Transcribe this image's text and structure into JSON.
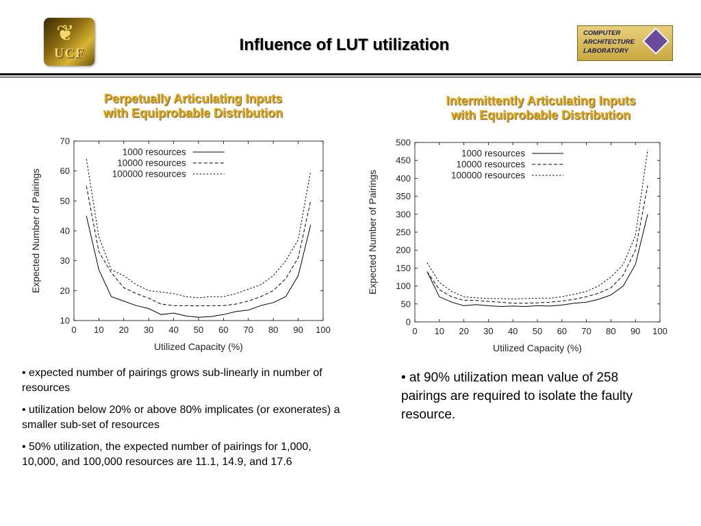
{
  "slide": {
    "title": "Influence of LUT utilization",
    "logo_left_text": "UCF",
    "logo_right_text": [
      "COMPUTER",
      "ARCHITECTURE",
      "LABORATORY"
    ]
  },
  "left": {
    "subtitle_lines": [
      "Perpetually Articulating Inputs",
      "with Equiprobable Distribution"
    ],
    "bullets": [
      "• expected number of pairings grows sub-linearly in number of resources",
      "• utilization below 20% or above 80% implicates (or exonerates) a smaller sub-set of resources",
      "• 50% utilization, the expected number of pairings for 1,000, 10,000, and 100,000 resources are 11.1, 14.9, and 17.6"
    ]
  },
  "right": {
    "subtitle_lines": [
      "Intermittently Articulating Inputs",
      "with Equiprobable Distribution"
    ],
    "bullets": [
      "• at 90% utilization mean value of 258 pairings are required to isolate the faulty resource."
    ]
  },
  "colors": {
    "subtitle": "#e8a800",
    "line": "#000000"
  },
  "chart_data": [
    {
      "type": "line",
      "xlabel": "Utilized Capacity (%)",
      "ylabel": "Expected Number of Pairings",
      "xlim": [
        0,
        100
      ],
      "ylim": [
        10,
        70
      ],
      "xticks": [
        0,
        10,
        20,
        30,
        40,
        50,
        60,
        70,
        80,
        90,
        100
      ],
      "yticks": [
        10,
        20,
        30,
        40,
        50,
        60,
        70
      ],
      "legend_position": "top-center",
      "x": [
        5,
        10,
        15,
        20,
        25,
        30,
        35,
        40,
        45,
        50,
        55,
        60,
        65,
        70,
        75,
        80,
        85,
        90,
        95
      ],
      "series": [
        {
          "name": "1000 resources",
          "dash": "solid",
          "values": [
            45,
            27,
            18,
            16.5,
            15,
            14,
            12,
            12.5,
            11.5,
            11.1,
            11.3,
            12,
            13,
            13.5,
            15,
            16,
            18,
            25,
            42
          ]
        },
        {
          "name": "10000 resources",
          "dash": "dashed",
          "values": [
            55,
            33,
            26,
            21,
            19,
            17.5,
            15.5,
            15,
            15,
            14.9,
            15,
            15,
            15.5,
            16.5,
            18,
            20,
            24,
            31,
            50
          ]
        },
        {
          "name": "100000 resources",
          "dash": "dotted",
          "values": [
            64,
            38,
            27,
            25,
            22,
            20,
            19.5,
            19,
            18,
            17.6,
            18,
            18,
            19,
            20.5,
            22,
            25,
            30,
            37,
            60
          ]
        }
      ]
    },
    {
      "type": "line",
      "xlabel": "Utilized Capacity (%)",
      "ylabel": "Expected Number of Pairings",
      "xlim": [
        0,
        100
      ],
      "ylim": [
        0,
        500
      ],
      "xticks": [
        0,
        10,
        20,
        30,
        40,
        50,
        60,
        70,
        80,
        90,
        100
      ],
      "yticks": [
        0,
        50,
        100,
        150,
        200,
        250,
        300,
        350,
        400,
        450,
        500
      ],
      "legend_position": "top-center",
      "x": [
        5,
        10,
        15,
        20,
        25,
        30,
        35,
        40,
        45,
        50,
        55,
        60,
        65,
        70,
        75,
        80,
        85,
        90,
        95
      ],
      "series": [
        {
          "name": "1000 resources",
          "dash": "solid",
          "values": [
            140,
            70,
            55,
            45,
            48,
            45,
            43,
            44,
            43,
            45,
            44,
            47,
            52,
            55,
            63,
            75,
            100,
            160,
            300
          ]
        },
        {
          "name": "10000 resources",
          "dash": "dashed",
          "values": [
            140,
            90,
            70,
            60,
            60,
            57,
            55,
            52,
            52,
            53,
            55,
            58,
            63,
            70,
            80,
            95,
            130,
            200,
            380
          ]
        },
        {
          "name": "100000 resources",
          "dash": "dotted",
          "values": [
            165,
            110,
            85,
            70,
            67,
            65,
            65,
            64,
            65,
            66,
            66,
            70,
            77,
            85,
            100,
            125,
            160,
            240,
            480
          ]
        }
      ]
    }
  ]
}
